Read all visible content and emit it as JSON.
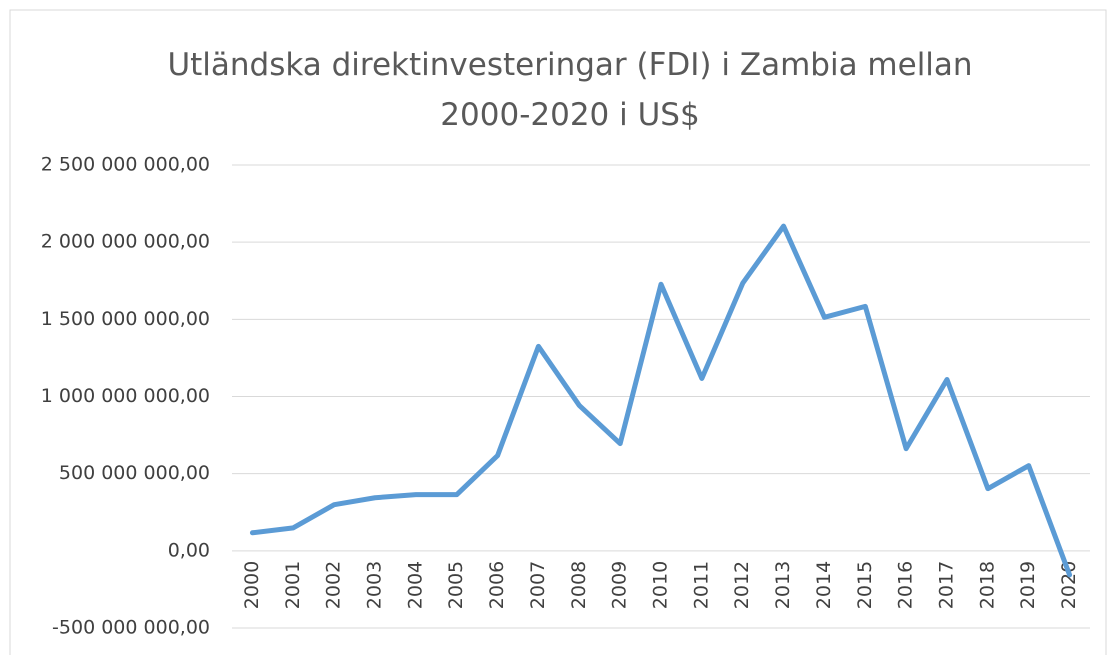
{
  "chart_data": {
    "type": "line",
    "title": "Utländska direktinvesteringar (FDI) i Zambia mellan 2000-2020 i US$",
    "categories": [
      "2000",
      "2001",
      "2002",
      "2003",
      "2004",
      "2005",
      "2006",
      "2007",
      "2008",
      "2009",
      "2010",
      "2011",
      "2012",
      "2013",
      "2014",
      "2015",
      "2016",
      "2017",
      "2018",
      "2019",
      "2020"
    ],
    "series": [
      {
        "name": "FDI",
        "color": "#5b9bd5",
        "values": [
          117000000,
          149000000,
          299000000,
          344000000,
          364000000,
          364000000,
          617000000,
          1325000000,
          942000000,
          695000000,
          1727000000,
          1117000000,
          1734000000,
          2104000000,
          1513000000,
          1584000000,
          662000000,
          1110000000,
          403000000,
          552000000,
          -156000000
        ]
      }
    ],
    "ylim": [
      -500000000,
      2500000000
    ],
    "yticks": [
      {
        "value": -500000000,
        "label": "-500 000 000,00"
      },
      {
        "value": 0,
        "label": "0,00"
      },
      {
        "value": 500000000,
        "label": "500 000 000,00"
      },
      {
        "value": 1000000000,
        "label": "1 000 000 000,00"
      },
      {
        "value": 1500000000,
        "label": "1 500 000 000,00"
      },
      {
        "value": 2000000000,
        "label": "2 000 000 000,00"
      },
      {
        "value": 2500000000,
        "label": "2 500 000 000,00"
      }
    ],
    "grid": true
  }
}
